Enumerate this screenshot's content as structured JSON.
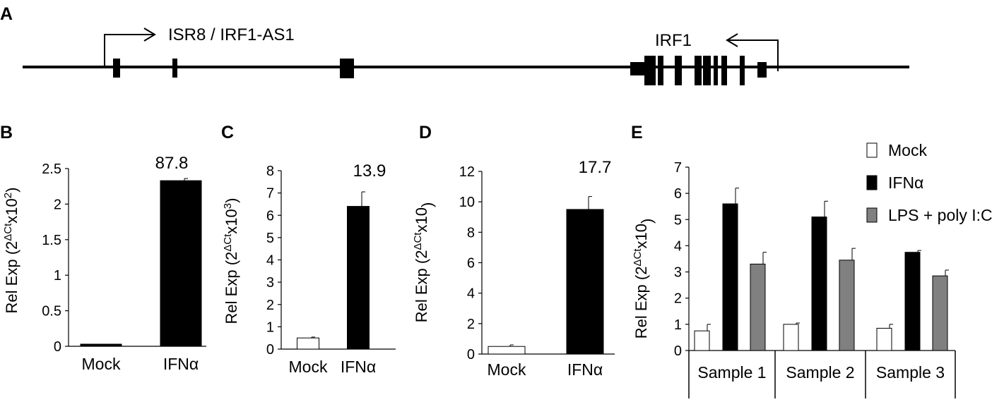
{
  "panel_letters": {
    "A": "A",
    "B": "B",
    "C": "C",
    "D": "D",
    "E": "E"
  },
  "gene_diagram": {
    "gene1_label": "ISR8 / IRF1-AS1",
    "gene2_label": "IRF1"
  },
  "colors": {
    "ifn": "#000000",
    "mock": "#ffffff",
    "lps": "#808080",
    "axis": "#000000"
  },
  "chart_data": [
    {
      "panel": "B",
      "type": "bar",
      "ylabel_main": "Rel Exp (2",
      "ylabel_sup_main": "ΔCt",
      "ylabel_rest": "x10",
      "ylabel_sup_exp": "2",
      "ylabel_close": ")",
      "categories": [
        "Mock",
        "IFNα"
      ],
      "values": [
        0.03,
        2.33
      ],
      "errors": [
        0,
        0.03
      ],
      "colors": [
        "#000000",
        "#000000"
      ],
      "ylim": [
        0,
        2.5
      ],
      "yticks": [
        "0",
        "0.5",
        "1",
        "1.5",
        "2",
        "2.5"
      ],
      "annotation": "87.8"
    },
    {
      "panel": "C",
      "type": "bar",
      "ylabel_main": "Rel Exp (2",
      "ylabel_sup_main": "ΔCt",
      "ylabel_rest": "x10",
      "ylabel_sup_exp": "3",
      "ylabel_close": ")",
      "categories": [
        "Mock",
        "IFNα"
      ],
      "values": [
        0.5,
        6.4
      ],
      "errors": [
        0.04,
        0.65
      ],
      "colors": [
        "#ffffff",
        "#000000"
      ],
      "ylim": [
        0,
        8
      ],
      "yticks": [
        "0",
        "1",
        "2",
        "3",
        "4",
        "5",
        "6",
        "7",
        "8"
      ],
      "annotation": "13.9"
    },
    {
      "panel": "D",
      "type": "bar",
      "ylabel_main": "Rel Exp (2",
      "ylabel_sup_main": "ΔCt",
      "ylabel_rest": "x10",
      "ylabel_sup_exp": "",
      "ylabel_close": ")",
      "categories": [
        "Mock",
        "IFNα"
      ],
      "values": [
        0.5,
        9.5
      ],
      "errors": [
        0.1,
        0.85
      ],
      "colors": [
        "#ffffff",
        "#000000"
      ],
      "ylim": [
        0,
        12
      ],
      "yticks": [
        "0",
        "2",
        "4",
        "6",
        "8",
        "10",
        "12"
      ],
      "annotation": "17.7"
    },
    {
      "panel": "E",
      "type": "bar",
      "ylabel_main": "Rel Exp (2",
      "ylabel_sup_main": "ΔCt",
      "ylabel_rest": "x10",
      "ylabel_sup_exp": "",
      "ylabel_close": ")",
      "categories": [
        "Sample 1",
        "Sample 2",
        "Sample 3"
      ],
      "series": [
        {
          "name": "Mock",
          "values": [
            0.75,
            1.0,
            0.85
          ],
          "errors": [
            0.25,
            0.05,
            0.15
          ],
          "color": "#ffffff"
        },
        {
          "name": "IFNα",
          "values": [
            5.6,
            5.1,
            3.75
          ],
          "errors": [
            0.6,
            0.6,
            0.07
          ],
          "color": "#000000"
        },
        {
          "name": "LPS + poly I:C",
          "values": [
            3.3,
            3.45,
            2.85
          ],
          "errors": [
            0.45,
            0.45,
            0.22
          ],
          "color": "#808080"
        }
      ],
      "ylim": [
        0,
        7
      ],
      "yticks": [
        "0",
        "1",
        "2",
        "3",
        "4",
        "5",
        "6",
        "7"
      ],
      "legend": "top-right"
    }
  ]
}
